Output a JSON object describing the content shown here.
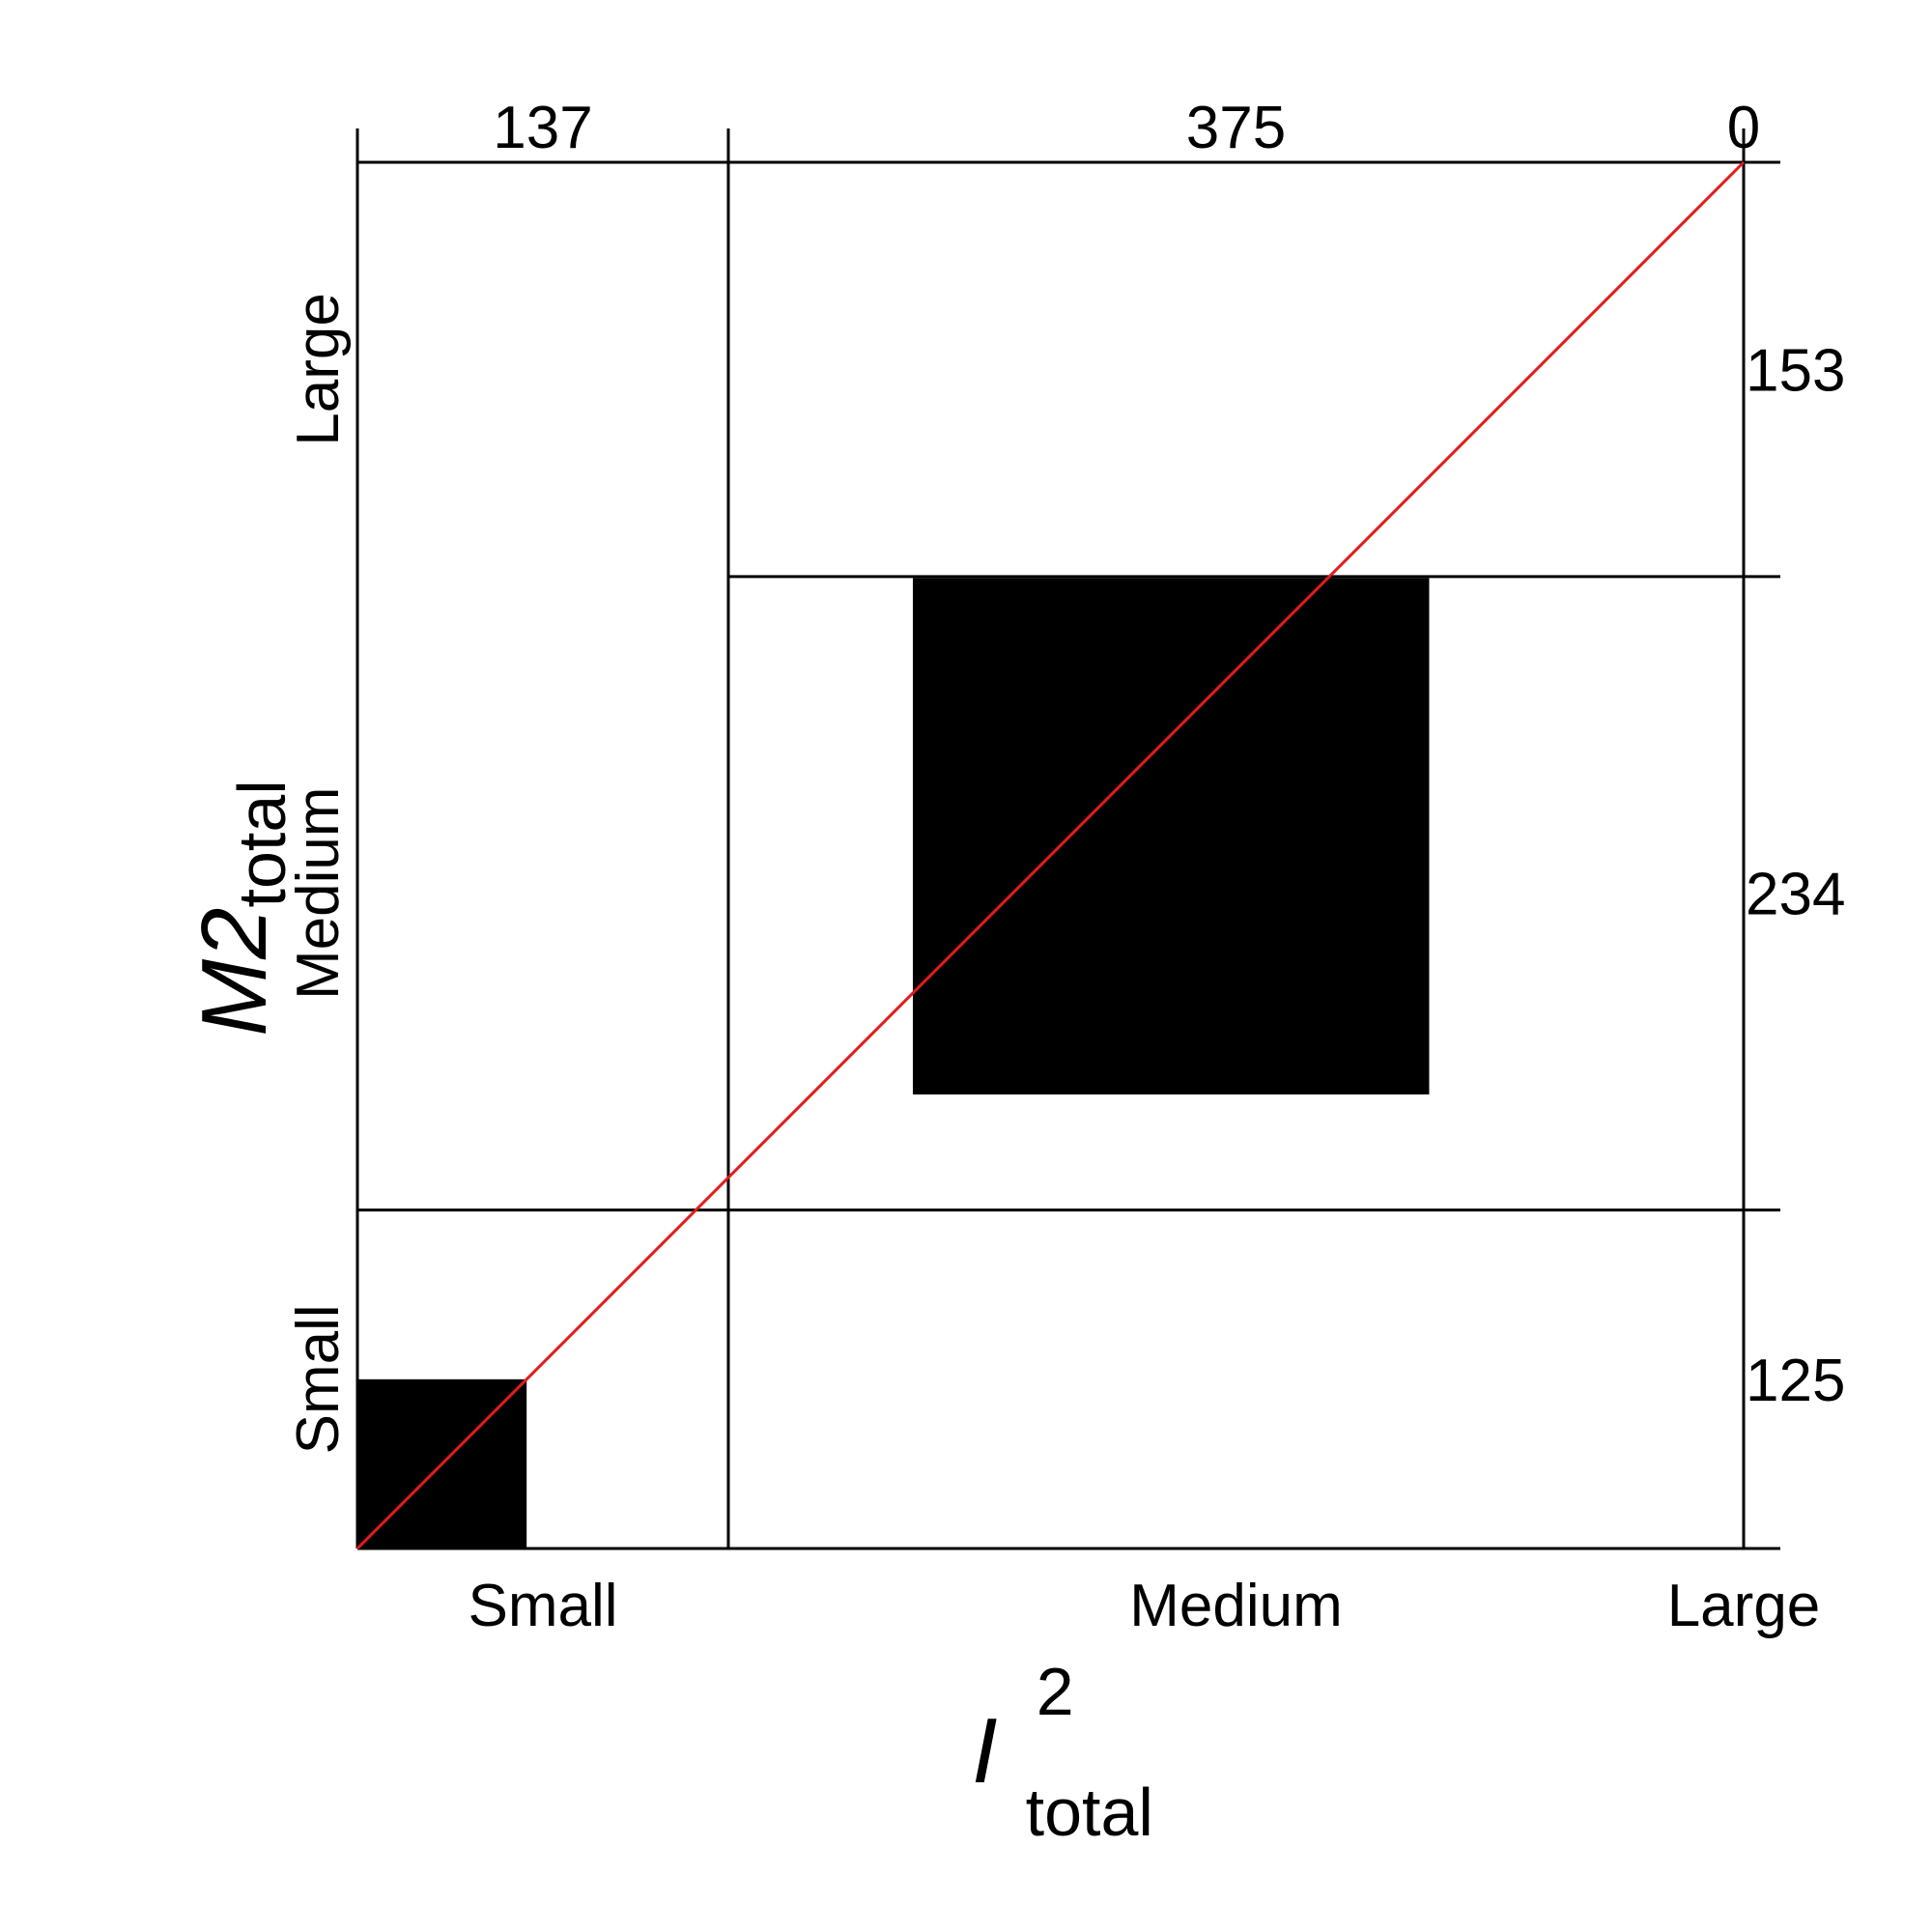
{
  "chart_data": {
    "type": "mosaic",
    "x_axis": {
      "title_main": "I",
      "title_sup": "2",
      "title_sub": "total",
      "categories": [
        "Small",
        "Medium",
        "Large"
      ],
      "column_totals": [
        137,
        375,
        0
      ]
    },
    "y_axis": {
      "title_main": "M2",
      "title_sub": "total",
      "categories": [
        "Small",
        "Medium",
        "Large"
      ],
      "row_totals": [
        125,
        234,
        153
      ]
    },
    "filled_cells": [
      {
        "x": "Small",
        "y": "Small"
      },
      {
        "x": "Medium",
        "y": "Medium"
      }
    ],
    "diagonal_line_color": "#e41a1c",
    "fill_color": "#000000"
  }
}
